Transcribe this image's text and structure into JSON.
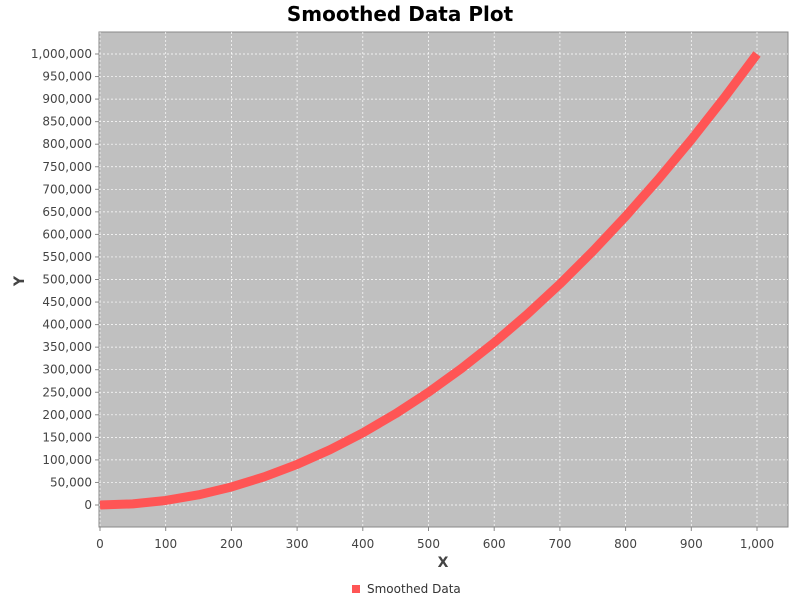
{
  "chart_data": {
    "type": "line",
    "title": "Smoothed Data Plot",
    "xlabel": "X",
    "ylabel": "Y",
    "xlim": [
      0,
      1000
    ],
    "ylim": [
      0,
      1000000
    ],
    "x_ticks": [
      0,
      100,
      200,
      300,
      400,
      500,
      600,
      700,
      800,
      900,
      1000
    ],
    "x_tick_labels": [
      "0",
      "100",
      "200",
      "300",
      "400",
      "500",
      "600",
      "700",
      "800",
      "900",
      "1,000"
    ],
    "y_ticks": [
      0,
      50000,
      100000,
      150000,
      200000,
      250000,
      300000,
      350000,
      400000,
      450000,
      500000,
      550000,
      600000,
      650000,
      700000,
      750000,
      800000,
      850000,
      900000,
      950000,
      1000000
    ],
    "y_tick_labels": [
      "0",
      "50,000",
      "100,000",
      "150,000",
      "200,000",
      "250,000",
      "300,000",
      "350,000",
      "400,000",
      "450,000",
      "500,000",
      "550,000",
      "600,000",
      "650,000",
      "700,000",
      "750,000",
      "800,000",
      "850,000",
      "900,000",
      "950,000",
      "1,000,000"
    ],
    "grid": true,
    "legend_position": "bottom-center",
    "plot_background": "#c0c0c0",
    "series": [
      {
        "name": "Smoothed Data",
        "color": "#ff5555",
        "x": [
          0,
          50,
          100,
          150,
          200,
          250,
          300,
          350,
          400,
          450,
          500,
          550,
          600,
          650,
          700,
          750,
          800,
          850,
          900,
          950,
          1000
        ],
        "y": [
          0,
          2500,
          10000,
          22500,
          40000,
          62500,
          90000,
          122500,
          160000,
          202500,
          250000,
          302500,
          360000,
          422500,
          490000,
          562500,
          640000,
          722500,
          810000,
          902500,
          1000000
        ]
      }
    ]
  }
}
